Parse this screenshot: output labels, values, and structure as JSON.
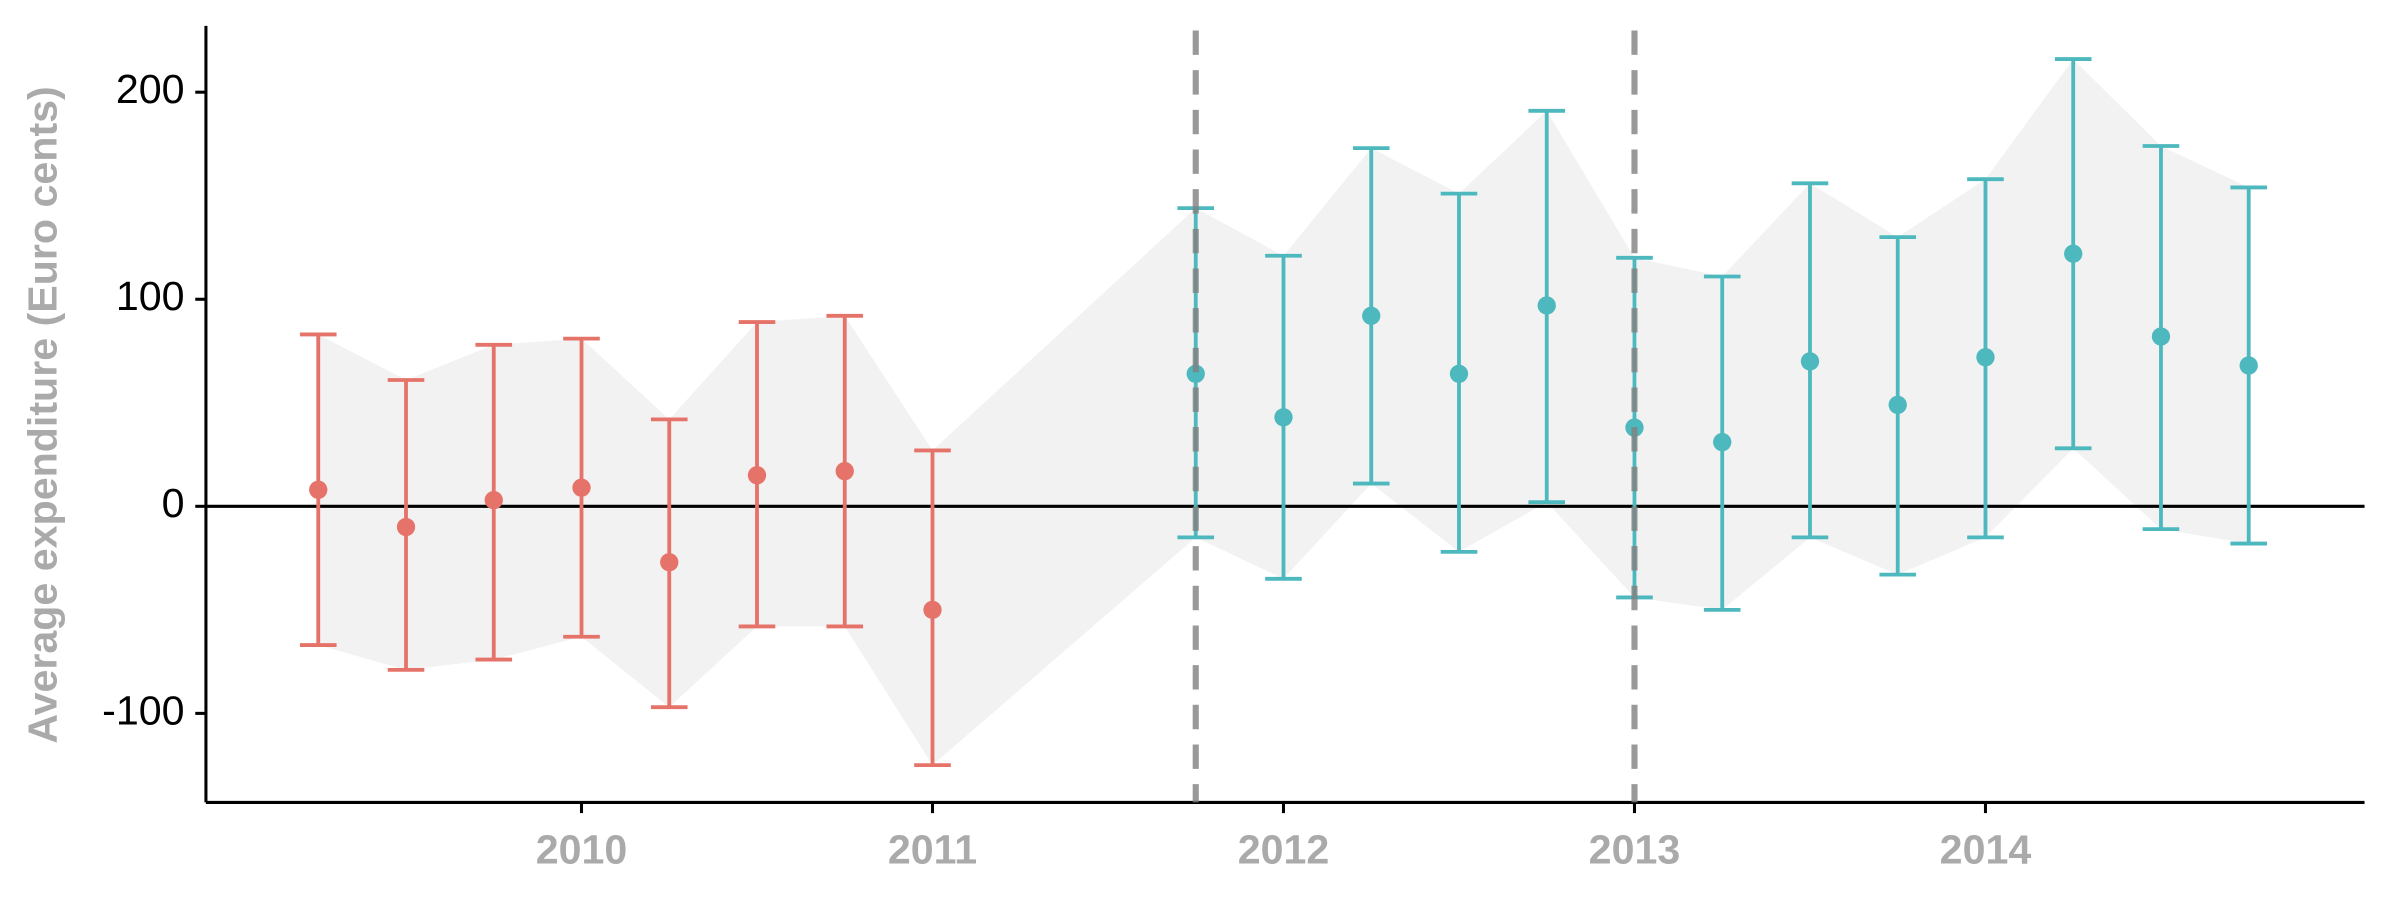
{
  "chart_data": {
    "type": "errorbar",
    "y_label": "Average expenditure (Euro cents)",
    "xlim": [
      2008.93,
      2015.08
    ],
    "ylim": [
      -143,
      232
    ],
    "xticks": [
      2010,
      2011,
      2012,
      2013,
      2014
    ],
    "yticks": [
      -100,
      0,
      100,
      200
    ],
    "hline": 0,
    "vlines": [
      2011.75,
      2013
    ],
    "ribbon_color": "#f2f2f2",
    "series": [
      {
        "color": "#e5736a",
        "x": [
          2009.25,
          2009.5,
          2009.75,
          2010,
          2010.25,
          2010.5,
          2010.75,
          2011
        ],
        "values": [
          8,
          -10,
          3,
          9,
          -27,
          15,
          17,
          -50
        ],
        "upper": [
          83,
          61,
          78,
          81,
          42,
          89,
          92,
          27
        ],
        "lower": [
          -67,
          -79,
          -74,
          -63,
          -97,
          -58,
          -58,
          -125
        ]
      },
      {
        "color": "#4db8be",
        "x": [
          2011.75,
          2012,
          2012.25,
          2012.5,
          2012.75,
          2013,
          2013.25,
          2013.5,
          2013.75,
          2014,
          2014.25,
          2014.5,
          2014.75
        ],
        "values": [
          64,
          43,
          92,
          64,
          97,
          38,
          31,
          70,
          49,
          72,
          122,
          82,
          68
        ],
        "upper": [
          144,
          121,
          173,
          151,
          191,
          120,
          111,
          156,
          130,
          158,
          216,
          174,
          154
        ],
        "lower": [
          -15,
          -35,
          11,
          -22,
          2,
          -44,
          -50,
          -15,
          -33,
          -15,
          28,
          -11,
          -18
        ]
      }
    ]
  }
}
